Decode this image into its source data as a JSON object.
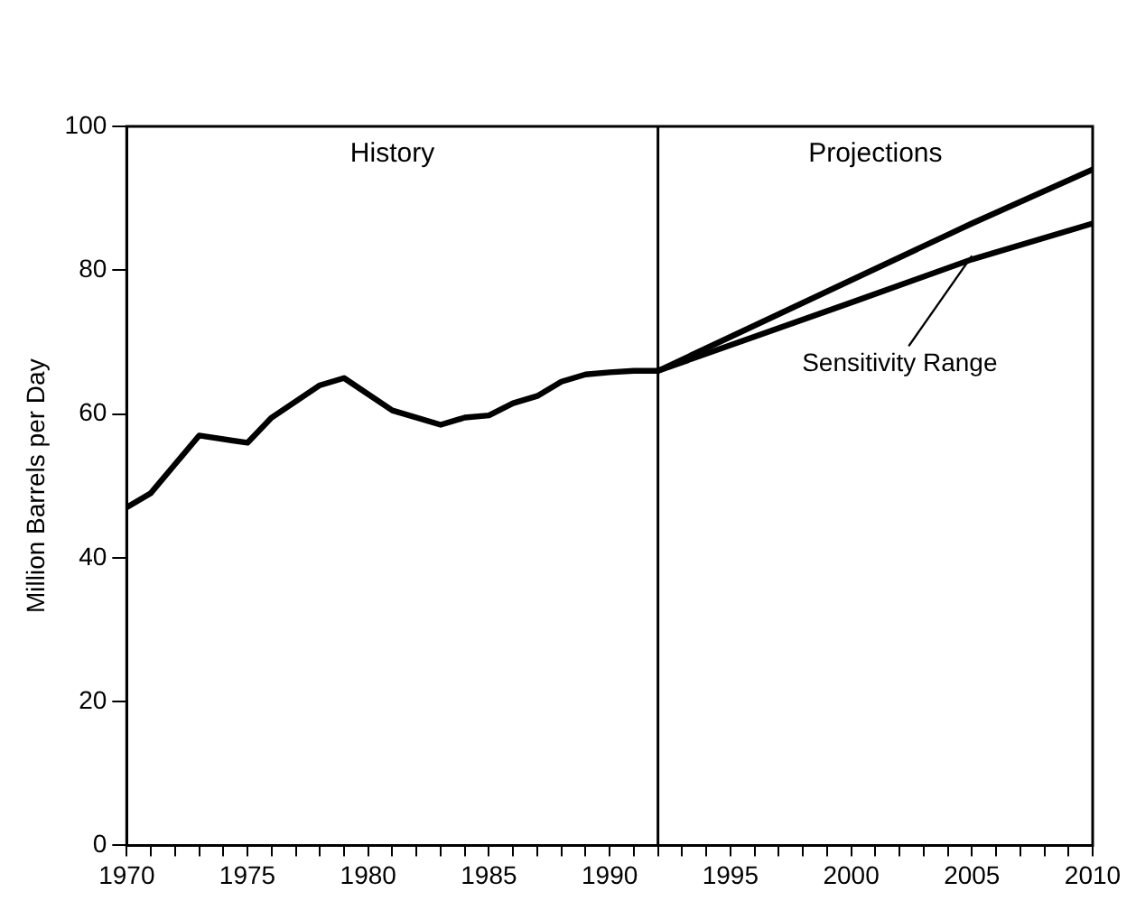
{
  "chart_data": {
    "type": "line",
    "ylabel": "Million Barrels per Day",
    "xlim": [
      1970,
      2010
    ],
    "xticks": [
      1970,
      {
        "value": 1971,
        "label": null
      },
      {
        "value": 1972,
        "label": null
      },
      {
        "value": 1973,
        "label": null
      },
      {
        "value": 1974,
        "label": null
      },
      1975,
      {
        "value": 1976,
        "label": null
      },
      {
        "value": 1977,
        "label": null
      },
      {
        "value": 1978,
        "label": null
      },
      {
        "value": 1979,
        "label": null
      },
      1980,
      {
        "value": 1981,
        "label": null
      },
      {
        "value": 1982,
        "label": null
      },
      {
        "value": 1983,
        "label": null
      },
      {
        "value": 1984,
        "label": null
      },
      1985,
      {
        "value": 1986,
        "label": null
      },
      {
        "value": 1987,
        "label": null
      },
      {
        "value": 1988,
        "label": null
      },
      {
        "value": 1989,
        "label": null
      },
      1990,
      {
        "value": 1991,
        "label": null
      },
      {
        "value": 1992,
        "label": null
      },
      {
        "value": 1993,
        "label": null
      },
      {
        "value": 1994,
        "label": null
      },
      1995,
      {
        "value": 1996,
        "label": null
      },
      {
        "value": 1997,
        "label": null
      },
      {
        "value": 1998,
        "label": null
      },
      {
        "value": 1999,
        "label": null
      },
      2000,
      {
        "value": 2001,
        "label": null
      },
      {
        "value": 2002,
        "label": null
      },
      {
        "value": 2003,
        "label": null
      },
      {
        "value": 2004,
        "label": null
      },
      2005,
      {
        "value": 2006,
        "label": null
      },
      {
        "value": 2007,
        "label": null
      },
      {
        "value": 2008,
        "label": null
      },
      {
        "value": 2009,
        "label": null
      },
      2010
    ],
    "ylim": [
      0,
      100
    ],
    "yticks": [
      0,
      20,
      40,
      60,
      80,
      100
    ],
    "grid": false,
    "legend": false,
    "marker": "none",
    "line_style": "solid",
    "series": [
      {
        "color": "#000000",
        "x": [
          1970,
          1971,
          1972,
          1973,
          1975,
          1976,
          1978,
          1979,
          1981,
          1983,
          1984,
          1985,
          1986,
          1987,
          1988,
          1989,
          1990,
          1991,
          1992,
          2005,
          2010
        ],
        "values": [
          47,
          49,
          53,
          57,
          56,
          59.5,
          64,
          65,
          60.5,
          58.5,
          59.5,
          59.8,
          61.5,
          62.5,
          64.5,
          65.5,
          65.8,
          66,
          66,
          86.5,
          94
        ]
      },
      {
        "color": "#000000",
        "x": [
          1992,
          2000,
          2005,
          2010
        ],
        "values": [
          66,
          75.5,
          81.5,
          86.5
        ]
      }
    ],
    "ref_lines": [
      {
        "axis": "x",
        "value": 1992,
        "color": "#000000"
      }
    ],
    "annotations": [
      "History",
      "Projections",
      {
        "text": "Sensitivity Range",
        "x": 2005,
        "y": 82
      }
    ]
  }
}
